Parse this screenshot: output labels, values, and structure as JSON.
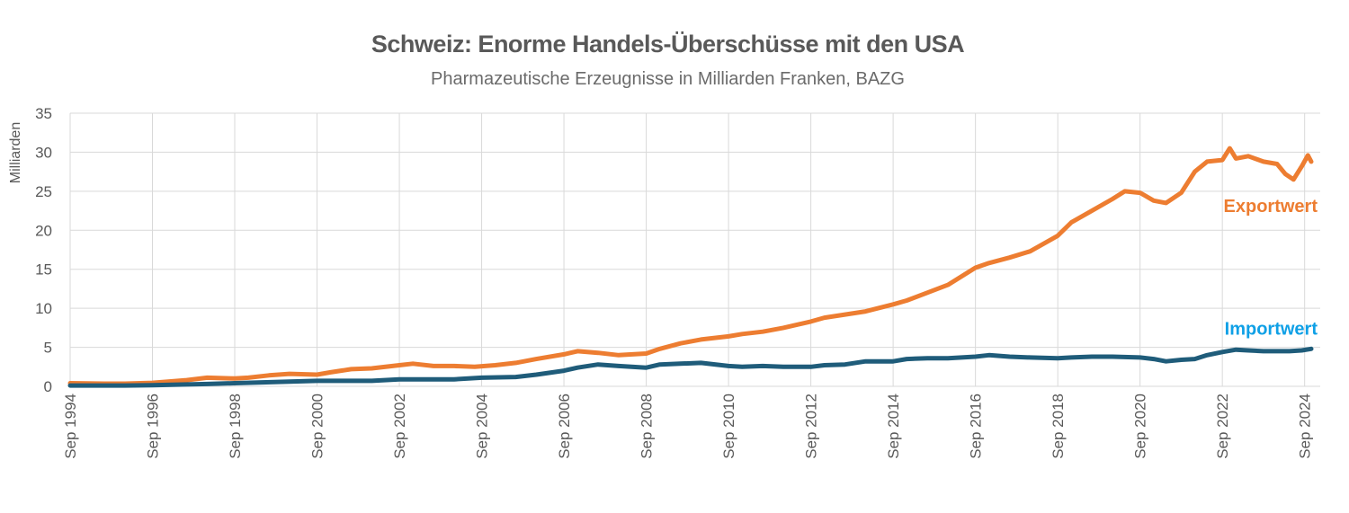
{
  "chart_data": {
    "type": "line",
    "title": "Schweiz: Enorme Handels-Überschüsse mit den USA",
    "subtitle": "Pharmazeutische Erzeugnisse in Milliarden Franken, BAZG",
    "ylabel": "Milliarden",
    "xlabel": "",
    "ylim": [
      0,
      35
    ],
    "yticks": [
      "0",
      "5",
      "10",
      "15",
      "20",
      "25",
      "30",
      "35"
    ],
    "xlim": [
      1994.67,
      2024.83
    ],
    "xticks": [
      "Sep 1994",
      "Sep 1996",
      "Sep 1998",
      "Sep 2000",
      "Sep 2002",
      "Sep 2004",
      "Sep 2006",
      "Sep 2008",
      "Sep 2010",
      "Sep 2012",
      "Sep 2014",
      "Sep 2016",
      "Sep 2018",
      "Sep 2020",
      "Sep 2022",
      "Sep 2024"
    ],
    "grid": true,
    "legend": "inline labels at right end of lines",
    "colors": {
      "export": "#ED7D31",
      "import": "#1F5C7A",
      "export_label": "#ED7D31",
      "import_label": "#0FA0E6",
      "grid": "#d9d9d9",
      "text": "#595959"
    },
    "series": [
      {
        "name": "Exportwert",
        "key": "export",
        "points": [
          [
            1994.67,
            0.4
          ],
          [
            1995.5,
            0.35
          ],
          [
            1996.0,
            0.35
          ],
          [
            1996.67,
            0.45
          ],
          [
            1997.5,
            0.8
          ],
          [
            1998.0,
            1.1
          ],
          [
            1998.67,
            1.0
          ],
          [
            1999.0,
            1.1
          ],
          [
            1999.5,
            1.4
          ],
          [
            2000.0,
            1.6
          ],
          [
            2000.67,
            1.5
          ],
          [
            2001.0,
            1.8
          ],
          [
            2001.5,
            2.2
          ],
          [
            2002.0,
            2.3
          ],
          [
            2002.67,
            2.7
          ],
          [
            2003.0,
            2.9
          ],
          [
            2003.5,
            2.6
          ],
          [
            2004.0,
            2.6
          ],
          [
            2004.5,
            2.5
          ],
          [
            2005.0,
            2.7
          ],
          [
            2005.5,
            3.0
          ],
          [
            2006.0,
            3.5
          ],
          [
            2006.67,
            4.1
          ],
          [
            2007.0,
            4.5
          ],
          [
            2007.5,
            4.3
          ],
          [
            2008.0,
            4.0
          ],
          [
            2008.67,
            4.2
          ],
          [
            2009.0,
            4.8
          ],
          [
            2009.5,
            5.5
          ],
          [
            2010.0,
            6.0
          ],
          [
            2010.67,
            6.4
          ],
          [
            2011.0,
            6.7
          ],
          [
            2011.5,
            7.0
          ],
          [
            2012.0,
            7.5
          ],
          [
            2012.67,
            8.3
          ],
          [
            2013.0,
            8.8
          ],
          [
            2013.5,
            9.2
          ],
          [
            2014.0,
            9.6
          ],
          [
            2014.67,
            10.5
          ],
          [
            2015.0,
            11.0
          ],
          [
            2015.5,
            12.0
          ],
          [
            2016.0,
            13.0
          ],
          [
            2016.67,
            15.2
          ],
          [
            2017.0,
            15.8
          ],
          [
            2017.5,
            16.5
          ],
          [
            2018.0,
            17.3
          ],
          [
            2018.67,
            19.3
          ],
          [
            2019.0,
            21.0
          ],
          [
            2019.5,
            22.5
          ],
          [
            2020.0,
            24.0
          ],
          [
            2020.3,
            25.0
          ],
          [
            2020.67,
            24.8
          ],
          [
            2021.0,
            23.8
          ],
          [
            2021.3,
            23.5
          ],
          [
            2021.67,
            24.8
          ],
          [
            2022.0,
            27.5
          ],
          [
            2022.3,
            28.8
          ],
          [
            2022.67,
            29.0
          ],
          [
            2022.85,
            30.5
          ],
          [
            2023.0,
            29.2
          ],
          [
            2023.3,
            29.5
          ],
          [
            2023.67,
            28.8
          ],
          [
            2024.0,
            28.5
          ],
          [
            2024.2,
            27.2
          ],
          [
            2024.4,
            26.5
          ],
          [
            2024.6,
            28.2
          ],
          [
            2024.75,
            29.6
          ],
          [
            2024.83,
            28.8
          ]
        ]
      },
      {
        "name": "Importwert",
        "key": "import",
        "points": [
          [
            1994.67,
            0.1
          ],
          [
            1996.0,
            0.1
          ],
          [
            1996.67,
            0.15
          ],
          [
            1998.0,
            0.3
          ],
          [
            1998.67,
            0.4
          ],
          [
            2000.0,
            0.6
          ],
          [
            2000.67,
            0.7
          ],
          [
            2002.0,
            0.7
          ],
          [
            2002.67,
            0.9
          ],
          [
            2004.0,
            0.9
          ],
          [
            2004.67,
            1.1
          ],
          [
            2005.5,
            1.2
          ],
          [
            2006.0,
            1.5
          ],
          [
            2006.67,
            2.0
          ],
          [
            2007.0,
            2.4
          ],
          [
            2007.5,
            2.8
          ],
          [
            2008.0,
            2.6
          ],
          [
            2008.67,
            2.4
          ],
          [
            2009.0,
            2.8
          ],
          [
            2009.5,
            2.9
          ],
          [
            2010.0,
            3.0
          ],
          [
            2010.67,
            2.6
          ],
          [
            2011.0,
            2.5
          ],
          [
            2011.5,
            2.6
          ],
          [
            2012.0,
            2.5
          ],
          [
            2012.67,
            2.5
          ],
          [
            2013.0,
            2.7
          ],
          [
            2013.5,
            2.8
          ],
          [
            2014.0,
            3.2
          ],
          [
            2014.67,
            3.2
          ],
          [
            2015.0,
            3.5
          ],
          [
            2015.5,
            3.6
          ],
          [
            2016.0,
            3.6
          ],
          [
            2016.67,
            3.8
          ],
          [
            2017.0,
            4.0
          ],
          [
            2017.5,
            3.8
          ],
          [
            2018.0,
            3.7
          ],
          [
            2018.67,
            3.6
          ],
          [
            2019.0,
            3.7
          ],
          [
            2019.5,
            3.8
          ],
          [
            2020.0,
            3.8
          ],
          [
            2020.67,
            3.7
          ],
          [
            2021.0,
            3.5
          ],
          [
            2021.3,
            3.2
          ],
          [
            2021.67,
            3.4
          ],
          [
            2022.0,
            3.5
          ],
          [
            2022.3,
            4.0
          ],
          [
            2022.67,
            4.4
          ],
          [
            2023.0,
            4.7
          ],
          [
            2023.3,
            4.6
          ],
          [
            2023.67,
            4.5
          ],
          [
            2024.0,
            4.5
          ],
          [
            2024.3,
            4.5
          ],
          [
            2024.6,
            4.6
          ],
          [
            2024.83,
            4.8
          ]
        ]
      }
    ]
  }
}
